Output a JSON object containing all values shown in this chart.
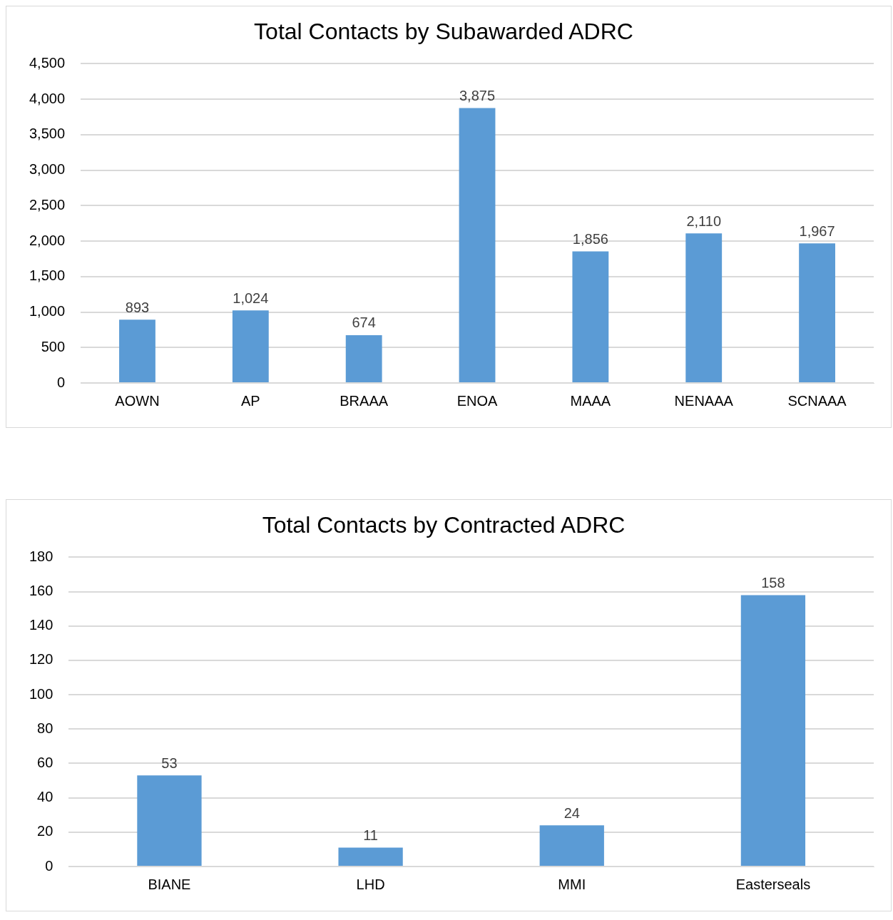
{
  "chart_data": [
    {
      "type": "bar",
      "title": "Total Contacts by Subawarded ADRC",
      "categories": [
        "AOWN",
        "AP",
        "BRAAA",
        "ENOA",
        "MAAA",
        "NENAAA",
        "SCNAAA"
      ],
      "values": [
        893,
        1024,
        674,
        3875,
        1856,
        2110,
        1967
      ],
      "color": "#5b9bd5",
      "ylim": [
        0,
        4500
      ],
      "yticks": [
        {
          "value": 0,
          "label": "0"
        },
        {
          "value": 500,
          "label": "500"
        },
        {
          "value": 1000,
          "label": "1,000"
        },
        {
          "value": 1500,
          "label": "1,500"
        },
        {
          "value": 2000,
          "label": "2,000"
        },
        {
          "value": 2500,
          "label": "2,500"
        },
        {
          "value": 3000,
          "label": "3,000"
        },
        {
          "value": 3500,
          "label": "3,500"
        },
        {
          "value": 4000,
          "label": "4,000"
        },
        {
          "value": 4500,
          "label": "4,500"
        }
      ],
      "grid": "y",
      "value_labels": [
        "893",
        "1,024",
        "674",
        "3,875",
        "1,856",
        "2,110",
        "1,967"
      ]
    },
    {
      "type": "bar",
      "title": "Total Contacts by Contracted ADRC",
      "categories": [
        "BIANE",
        "LHD",
        "MMI",
        "Easterseals"
      ],
      "values": [
        53,
        11,
        24,
        158
      ],
      "color": "#5b9bd5",
      "ylim": [
        0,
        180
      ],
      "yticks": [
        0,
        20,
        40,
        60,
        80,
        100,
        120,
        140,
        160,
        180
      ],
      "grid": "y",
      "data_labels": true
    }
  ]
}
